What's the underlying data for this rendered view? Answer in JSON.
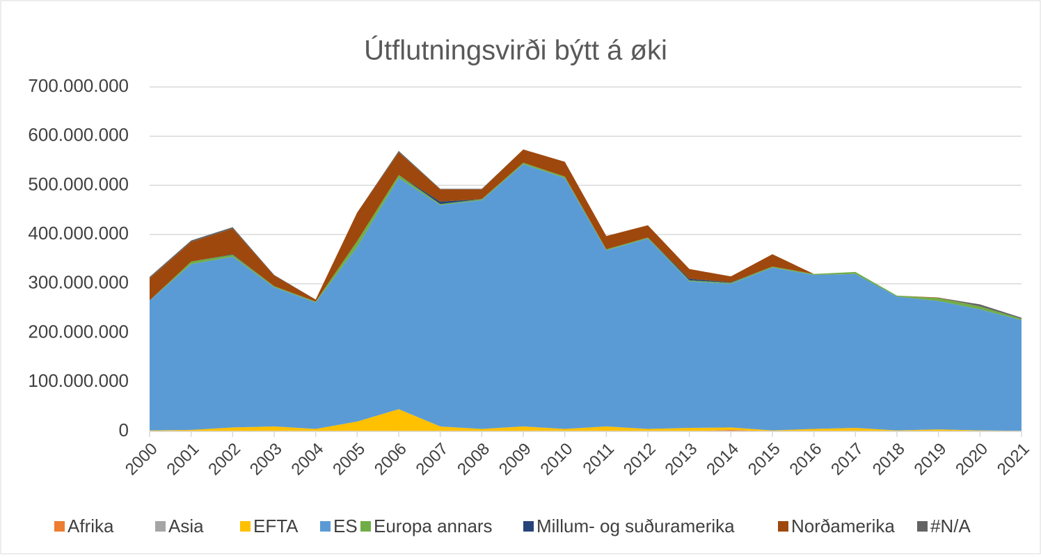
{
  "chart_data": {
    "type": "area",
    "stacked": true,
    "title": "Útflutningsvirði býtt á øki",
    "categories": [
      "2000",
      "2001",
      "2002",
      "2003",
      "2004",
      "2005",
      "2006",
      "2007",
      "2008",
      "2009",
      "2010",
      "2011",
      "2012",
      "2013",
      "2014",
      "2015",
      "2016",
      "2017",
      "2018",
      "2019",
      "2020",
      "2021"
    ],
    "series": [
      {
        "name": "Afrika",
        "color": "#ed7d31",
        "values": [
          0,
          0,
          0,
          0,
          0,
          0,
          0,
          0,
          0,
          0,
          0,
          0,
          0,
          0,
          3000000,
          0,
          0,
          0,
          0,
          0,
          0,
          0
        ]
      },
      {
        "name": "Asia",
        "color": "#a5a5a5",
        "values": [
          0,
          0,
          0,
          0,
          0,
          0,
          0,
          0,
          0,
          0,
          0,
          0,
          0,
          0,
          0,
          0,
          0,
          0,
          0,
          0,
          0,
          0
        ]
      },
      {
        "name": "EFTA",
        "color": "#ffc000",
        "values": [
          2000000,
          3000000,
          8000000,
          10000000,
          5000000,
          20000000,
          45000000,
          10000000,
          5000000,
          10000000,
          5000000,
          10000000,
          5000000,
          7000000,
          5000000,
          2000000,
          5000000,
          7000000,
          2000000,
          4000000,
          2000000,
          1000000
        ]
      },
      {
        "name": "ES",
        "color": "#5b9bd5",
        "values": [
          264000000,
          337000000,
          347000000,
          283000000,
          257000000,
          355000000,
          470000000,
          450000000,
          465000000,
          533000000,
          510000000,
          358000000,
          387000000,
          298000000,
          292000000,
          331000000,
          313000000,
          313000000,
          272000000,
          261000000,
          246000000,
          225000000
        ]
      },
      {
        "name": "Europa annars",
        "color": "#70ad47",
        "values": [
          0,
          5000000,
          4000000,
          2000000,
          2000000,
          12000000,
          6000000,
          2000000,
          2000000,
          3000000,
          3000000,
          2000000,
          2000000,
          2000000,
          2000000,
          2000000,
          2000000,
          4000000,
          2000000,
          6000000,
          6000000,
          3000000
        ]
      },
      {
        "name": "Millum- og suðuramerika",
        "color": "#264478",
        "values": [
          0,
          0,
          1000000,
          0,
          0,
          0,
          0,
          5000000,
          0,
          0,
          0,
          0,
          0,
          3000000,
          1000000,
          0,
          0,
          0,
          0,
          0,
          0,
          0
        ]
      },
      {
        "name": "Norðamerika",
        "color": "#9e480e",
        "values": [
          45000000,
          40000000,
          52000000,
          22000000,
          4000000,
          58000000,
          46000000,
          25000000,
          20000000,
          27000000,
          30000000,
          27000000,
          25000000,
          20000000,
          12000000,
          25000000,
          0,
          0,
          0,
          1000000,
          0,
          0
        ]
      },
      {
        "name": "#N/A",
        "color": "#636363",
        "values": [
          3000000,
          3000000,
          3000000,
          1000000,
          0,
          0,
          3000000,
          1000000,
          1000000,
          0,
          0,
          0,
          0,
          0,
          0,
          0,
          0,
          0,
          0,
          0,
          4000000,
          2000000
        ]
      }
    ],
    "ylim": [
      0,
      700000000
    ],
    "yticks": [
      0,
      {
        "value": 100000000,
        "label": "100.000.000"
      },
      {
        "value": 200000000,
        "label": "200.000.000"
      },
      {
        "value": 300000000,
        "label": "300.000.000"
      },
      {
        "value": 400000000,
        "label": "400.000.000"
      },
      {
        "value": 500000000,
        "label": "500.000.000"
      },
      {
        "value": 600000000,
        "label": "600.000.000"
      },
      {
        "value": 700000000,
        "label": "700.000.000"
      }
    ],
    "grid": true,
    "legend": "bottom"
  }
}
